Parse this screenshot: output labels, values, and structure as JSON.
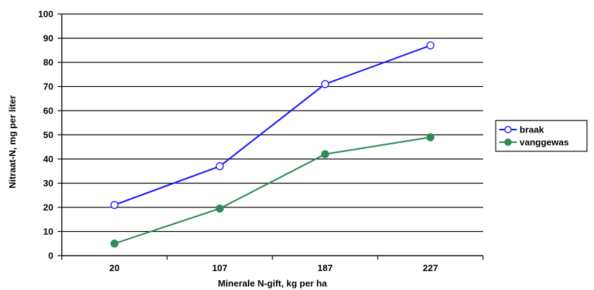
{
  "chart_data": {
    "type": "line",
    "title": "",
    "xlabel": "Minerale N-gift, kg per ha",
    "ylabel": "Nitraat-N, mg per liter",
    "categories": [
      "20",
      "107",
      "187",
      "227"
    ],
    "ylim": [
      0,
      100
    ],
    "yticks": [
      0,
      10,
      20,
      30,
      40,
      50,
      60,
      70,
      80,
      90,
      100
    ],
    "grid": true,
    "legend_position": "right",
    "series": [
      {
        "name": "braak",
        "values": [
          21,
          37,
          71,
          87
        ],
        "color": "#1a1aff",
        "marker": "open-circle"
      },
      {
        "name": "vanggewas",
        "values": [
          5,
          19.5,
          42,
          49
        ],
        "color": "#2e8b57",
        "marker": "filled-circle"
      }
    ]
  }
}
